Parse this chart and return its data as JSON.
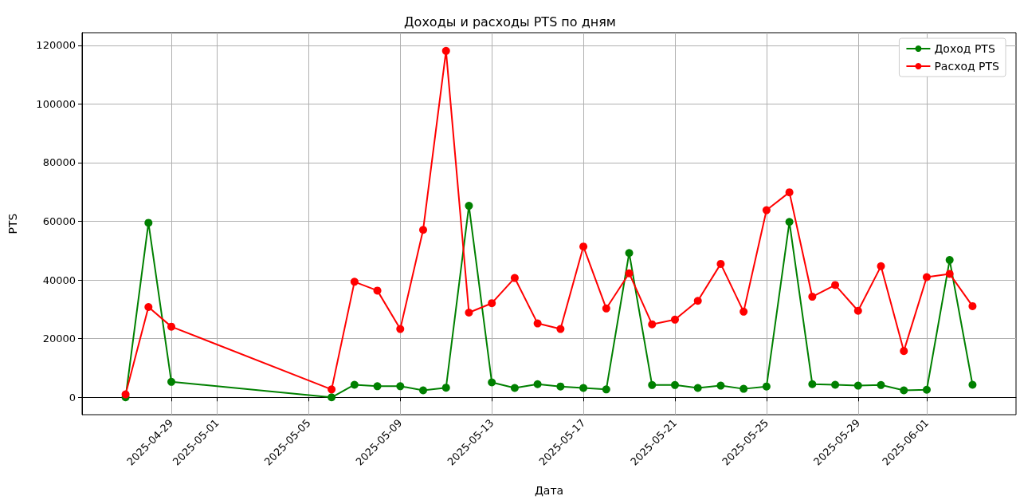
{
  "chart_data": {
    "type": "line",
    "title": "Доходы и расходы PTS по дням",
    "xlabel": "Дата",
    "ylabel": "PTS",
    "x": [
      "2025-04-27",
      "2025-04-28",
      "2025-04-29",
      "2025-05-06",
      "2025-05-07",
      "2025-05-08",
      "2025-05-09",
      "2025-05-10",
      "2025-05-11",
      "2025-05-12",
      "2025-05-13",
      "2025-05-14",
      "2025-05-15",
      "2025-05-16",
      "2025-05-17",
      "2025-05-18",
      "2025-05-19",
      "2025-05-20",
      "2025-05-21",
      "2025-05-22",
      "2025-05-23",
      "2025-05-24",
      "2025-05-25",
      "2025-05-26",
      "2025-05-27",
      "2025-05-28",
      "2025-05-29",
      "2025-05-30",
      "2025-05-31",
      "2025-06-01",
      "2025-06-02",
      "2025-06-03"
    ],
    "series": [
      {
        "name": "Доход PTS",
        "color": "#008000",
        "values": [
          0,
          59500,
          5300,
          0,
          4300,
          3800,
          3800,
          2400,
          3300,
          65300,
          5100,
          3200,
          4500,
          3700,
          3200,
          2700,
          49200,
          4200,
          4200,
          3200,
          4000,
          2900,
          3700,
          59800,
          4500,
          4300,
          4000,
          4200,
          2400,
          2600,
          46800,
          4300
        ]
      },
      {
        "name": "Расход PTS",
        "color": "#ff0000",
        "values": [
          1000,
          30800,
          24100,
          2700,
          39400,
          36400,
          23300,
          57100,
          118100,
          28900,
          32100,
          40700,
          25200,
          23300,
          51400,
          30300,
          42300,
          24900,
          26500,
          32900,
          45500,
          29200,
          63800,
          69900,
          34300,
          38300,
          29500,
          44700,
          15800,
          41000,
          42100,
          31100
        ]
      }
    ],
    "xlim": [
      "2025-04-25T02:24",
      "2025-06-04T21:36"
    ],
    "xticks": [
      "2025-04-29",
      "2025-05-01",
      "2025-05-05",
      "2025-05-09",
      "2025-05-13",
      "2025-05-17",
      "2025-05-21",
      "2025-05-25",
      "2025-05-29",
      "2025-06-01"
    ],
    "ylim": [
      -5900,
      124300
    ],
    "yticks": [
      0,
      20000,
      40000,
      60000,
      80000,
      100000,
      120000
    ],
    "grid": true,
    "legend": "top right",
    "marker": "circle",
    "line_style": "solid"
  }
}
